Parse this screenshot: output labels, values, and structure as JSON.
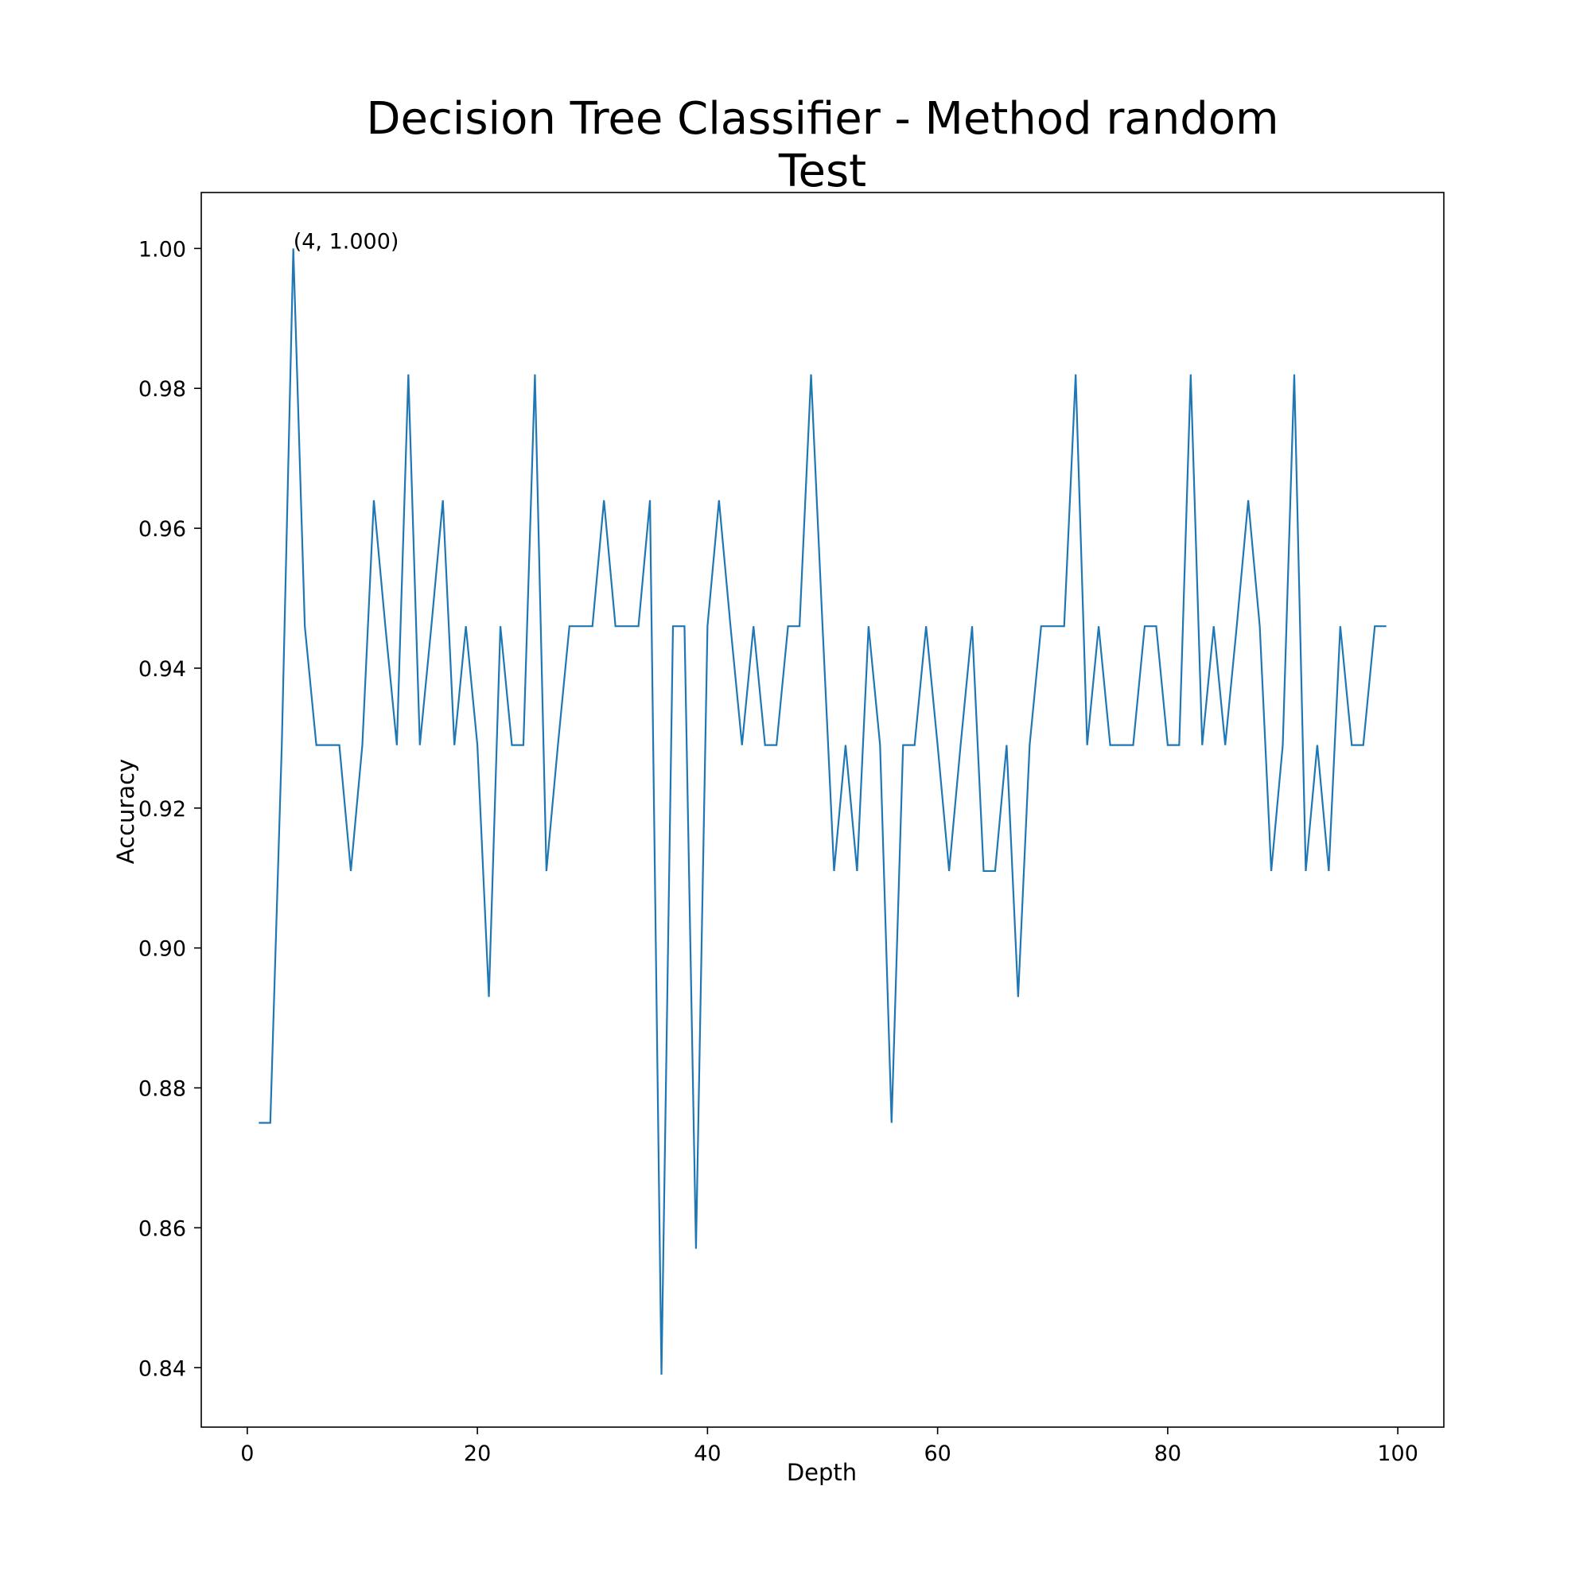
{
  "chart_data": {
    "type": "line",
    "title": "Decision Tree Classifier - Method random",
    "subtitle": "Test",
    "xlabel": "Depth",
    "ylabel": "Accuracy",
    "xlim": [
      -4,
      104
    ],
    "ylim": [
      0.8315,
      1.008
    ],
    "xticks": [
      0,
      20,
      40,
      60,
      80,
      100
    ],
    "yticks": [
      0.84,
      0.86,
      0.88,
      0.9,
      0.92,
      0.94,
      0.96,
      0.98,
      1.0
    ],
    "ytick_labels": [
      "0.84",
      "0.86",
      "0.88",
      "0.90",
      "0.92",
      "0.94",
      "0.96",
      "0.98",
      "1.00"
    ],
    "grid": false,
    "line_color": "#1f77b4",
    "annotation": {
      "x": 4,
      "y": 1.0,
      "text": "(4, 1.000)"
    },
    "series": [
      {
        "x": [
          1,
          2,
          3,
          4,
          5,
          6,
          7,
          8,
          9,
          10,
          11,
          12,
          13,
          14,
          15,
          16,
          17,
          18,
          19,
          20,
          21,
          22,
          23,
          24,
          25,
          26,
          27,
          28,
          29,
          30,
          31,
          32,
          33,
          34,
          35,
          36,
          37,
          38,
          39,
          40,
          41,
          42,
          43,
          44,
          45,
          46,
          47,
          48,
          49,
          50,
          51,
          52,
          53,
          54,
          55,
          56,
          57,
          58,
          59,
          60,
          61,
          62,
          63,
          64,
          65,
          66,
          67,
          68,
          69,
          70,
          71,
          72,
          73,
          74,
          75,
          76,
          77,
          78,
          79,
          80,
          81,
          82,
          83,
          84,
          85,
          86,
          87,
          88,
          89,
          90,
          91,
          92,
          93,
          94,
          95,
          96,
          97,
          98,
          99
        ],
        "values": [
          0.875,
          0.875,
          0.929,
          1.0,
          0.946,
          0.929,
          0.929,
          0.929,
          0.911,
          0.929,
          0.964,
          0.946,
          0.929,
          0.982,
          0.929,
          0.946,
          0.964,
          0.929,
          0.946,
          0.929,
          0.893,
          0.946,
          0.929,
          0.929,
          0.982,
          0.911,
          0.929,
          0.946,
          0.946,
          0.946,
          0.964,
          0.946,
          0.946,
          0.946,
          0.964,
          0.839,
          0.946,
          0.946,
          0.857,
          0.946,
          0.964,
          0.946,
          0.929,
          0.946,
          0.929,
          0.929,
          0.946,
          0.946,
          0.982,
          0.946,
          0.911,
          0.929,
          0.911,
          0.946,
          0.929,
          0.875,
          0.929,
          0.929,
          0.946,
          0.929,
          0.911,
          0.929,
          0.946,
          0.911,
          0.911,
          0.929,
          0.893,
          0.929,
          0.946,
          0.946,
          0.946,
          0.982,
          0.929,
          0.946,
          0.929,
          0.929,
          0.929,
          0.946,
          0.946,
          0.929,
          0.929,
          0.982,
          0.929,
          0.946,
          0.929,
          0.946,
          0.964,
          0.946,
          0.911,
          0.929,
          0.982,
          0.911,
          0.929,
          0.911,
          0.946,
          0.929,
          0.929,
          0.946,
          0.946
        ]
      }
    ]
  }
}
